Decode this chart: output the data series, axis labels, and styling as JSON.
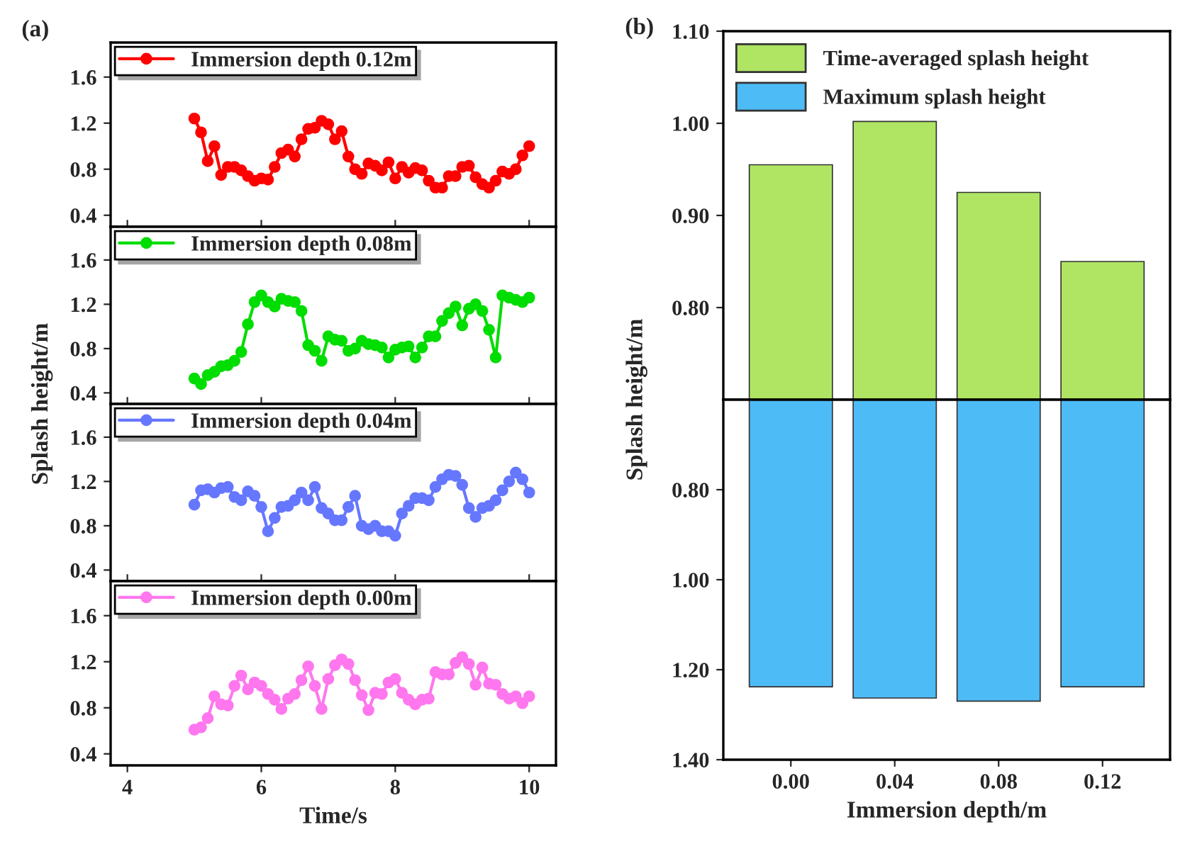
{
  "chart_data": [
    {
      "type": "line",
      "title": "(a)",
      "xlim": [
        3.75,
        10.4
      ],
      "ylim": [
        0.3,
        1.9
      ],
      "yticks": [
        0.4,
        0.8,
        1.2,
        1.6
      ],
      "xticks": [
        4,
        6,
        8,
        10
      ],
      "tick_labels": "y",
      "legend": "top left",
      "marker": "circle",
      "line_style": "solid",
      "grid": false,
      "x": [
        5.0,
        5.1,
        5.2,
        5.3,
        5.4,
        5.5,
        5.6,
        5.7,
        5.8,
        5.9,
        6.0,
        6.1,
        6.2,
        6.3,
        6.4,
        6.5,
        6.6,
        6.7,
        6.8,
        6.9,
        7.0,
        7.1,
        7.2,
        7.3,
        7.4,
        7.5,
        7.6,
        7.7,
        7.8,
        7.9,
        8.0,
        8.1,
        8.2,
        8.3,
        8.4,
        8.5,
        8.6,
        8.7,
        8.8,
        8.9,
        9.0,
        9.1,
        9.2,
        9.3,
        9.4,
        9.5,
        9.6,
        9.7,
        9.8,
        9.9,
        10.0
      ],
      "series": [
        {
          "name": "Immersion depth 0.12m",
          "color": "#ff0000",
          "values": [
            1.24,
            1.12,
            0.87,
            1.0,
            0.75,
            0.82,
            0.82,
            0.79,
            0.74,
            0.7,
            0.72,
            0.71,
            0.82,
            0.94,
            0.97,
            0.91,
            1.06,
            1.15,
            1.16,
            1.22,
            1.19,
            1.06,
            1.13,
            0.91,
            0.8,
            0.76,
            0.85,
            0.83,
            0.79,
            0.86,
            0.72,
            0.82,
            0.77,
            0.81,
            0.79,
            0.7,
            0.64,
            0.64,
            0.74,
            0.74,
            0.82,
            0.83,
            0.73,
            0.67,
            0.64,
            0.7,
            0.78,
            0.76,
            0.8,
            0.92,
            1.0
          ]
        }
      ]
    },
    {
      "type": "line",
      "ylabel": "Splash height/m",
      "xlim": [
        3.75,
        10.4
      ],
      "ylim": [
        0.3,
        1.9
      ],
      "yticks": [
        0.4,
        0.8,
        1.2,
        1.6
      ],
      "xticks": [
        4,
        6,
        8,
        10
      ],
      "tick_labels": "y",
      "legend": "top left",
      "marker": "circle",
      "line_style": "solid",
      "grid": false,
      "x": [
        5.0,
        5.1,
        5.2,
        5.3,
        5.4,
        5.5,
        5.6,
        5.7,
        5.8,
        5.9,
        6.0,
        6.1,
        6.2,
        6.3,
        6.4,
        6.5,
        6.6,
        6.7,
        6.8,
        6.9,
        7.0,
        7.1,
        7.2,
        7.3,
        7.4,
        7.5,
        7.6,
        7.7,
        7.8,
        7.9,
        8.0,
        8.1,
        8.2,
        8.3,
        8.4,
        8.5,
        8.6,
        8.7,
        8.8,
        8.9,
        9.0,
        9.1,
        9.2,
        9.3,
        9.4,
        9.5,
        9.6,
        9.7,
        9.8,
        9.9,
        10.0
      ],
      "series": [
        {
          "name": "Immersion depth 0.08m",
          "color": "#00dd00",
          "values": [
            0.53,
            0.48,
            0.56,
            0.59,
            0.64,
            0.65,
            0.69,
            0.77,
            1.02,
            1.22,
            1.28,
            1.22,
            1.18,
            1.25,
            1.23,
            1.22,
            1.14,
            0.83,
            0.78,
            0.69,
            0.91,
            0.88,
            0.87,
            0.78,
            0.8,
            0.87,
            0.84,
            0.83,
            0.81,
            0.72,
            0.79,
            0.81,
            0.82,
            0.72,
            0.81,
            0.91,
            0.91,
            1.05,
            1.12,
            1.18,
            1.01,
            1.16,
            1.2,
            1.14,
            0.97,
            0.72,
            1.28,
            1.26,
            1.24,
            1.22,
            1.26
          ]
        }
      ]
    },
    {
      "type": "line",
      "xlim": [
        3.75,
        10.4
      ],
      "ylim": [
        0.3,
        1.9
      ],
      "yticks": [
        0.4,
        0.8,
        1.2,
        1.6
      ],
      "xticks": [
        4,
        6,
        8,
        10
      ],
      "tick_labels": "y",
      "legend": "top left",
      "marker": "circle",
      "line_style": "solid",
      "grid": false,
      "x": [
        5.0,
        5.1,
        5.2,
        5.3,
        5.4,
        5.5,
        5.6,
        5.7,
        5.8,
        5.9,
        6.0,
        6.1,
        6.2,
        6.3,
        6.4,
        6.5,
        6.6,
        6.7,
        6.8,
        6.9,
        7.0,
        7.1,
        7.2,
        7.3,
        7.4,
        7.5,
        7.6,
        7.7,
        7.8,
        7.9,
        8.0,
        8.1,
        8.2,
        8.3,
        8.4,
        8.5,
        8.6,
        8.7,
        8.8,
        8.9,
        9.0,
        9.1,
        9.2,
        9.3,
        9.4,
        9.5,
        9.6,
        9.7,
        9.8,
        9.9,
        10.0
      ],
      "series": [
        {
          "name": "Immersion depth 0.04m",
          "color": "#6677ff",
          "values": [
            0.99,
            1.12,
            1.13,
            1.1,
            1.14,
            1.15,
            1.06,
            1.03,
            1.11,
            1.07,
            0.97,
            0.75,
            0.87,
            0.97,
            0.98,
            1.03,
            1.1,
            1.03,
            1.15,
            0.96,
            0.91,
            0.85,
            0.85,
            0.97,
            1.07,
            0.8,
            0.77,
            0.8,
            0.75,
            0.75,
            0.71,
            0.91,
            0.98,
            1.05,
            1.05,
            1.03,
            1.15,
            1.22,
            1.26,
            1.25,
            1.17,
            0.96,
            0.88,
            0.96,
            0.98,
            1.03,
            1.12,
            1.2,
            1.28,
            1.22,
            1.1
          ]
        }
      ]
    },
    {
      "type": "line",
      "xlabel": "Time/s",
      "xlim": [
        3.75,
        10.4
      ],
      "ylim": [
        0.3,
        1.9
      ],
      "yticks": [
        0.4,
        0.8,
        1.2,
        1.6
      ],
      "xticks": [
        4,
        6,
        8,
        10
      ],
      "legend": "top left",
      "marker": "circle",
      "line_style": "solid",
      "grid": false,
      "x": [
        5.0,
        5.1,
        5.2,
        5.3,
        5.4,
        5.5,
        5.6,
        5.7,
        5.8,
        5.9,
        6.0,
        6.1,
        6.2,
        6.3,
        6.4,
        6.5,
        6.6,
        6.7,
        6.8,
        6.9,
        7.0,
        7.1,
        7.2,
        7.3,
        7.4,
        7.5,
        7.6,
        7.7,
        7.8,
        7.9,
        8.0,
        8.1,
        8.2,
        8.3,
        8.4,
        8.5,
        8.6,
        8.7,
        8.8,
        8.9,
        9.0,
        9.1,
        9.2,
        9.3,
        9.4,
        9.5,
        9.6,
        9.7,
        9.8,
        9.9,
        10.0
      ],
      "series": [
        {
          "name": "Immersion depth 0.00m",
          "color": "#ff77ee",
          "values": [
            0.61,
            0.63,
            0.71,
            0.9,
            0.83,
            0.82,
            0.99,
            1.08,
            0.96,
            1.02,
            0.99,
            0.92,
            0.87,
            0.79,
            0.88,
            0.92,
            1.04,
            1.16,
            0.99,
            0.79,
            1.05,
            1.17,
            1.22,
            1.18,
            1.04,
            0.91,
            0.78,
            0.93,
            0.92,
            1.02,
            1.05,
            0.93,
            0.87,
            0.83,
            0.87,
            0.88,
            1.11,
            1.09,
            1.09,
            1.19,
            1.24,
            1.18,
            1.0,
            1.15,
            1.01,
            1.0,
            0.92,
            0.88,
            0.9,
            0.84,
            0.9
          ]
        }
      ]
    },
    {
      "type": "bar",
      "title": "(b)",
      "ylabel": "Splash height/m",
      "categories": [
        "0.00",
        "0.04",
        "0.08",
        "0.12"
      ],
      "ylim": [
        0.7,
        1.1
      ],
      "yticks": [
        {
          "value": 0.8,
          "label": "0.80"
        },
        {
          "value": 0.9,
          "label": "0.90"
        },
        {
          "value": 1.0,
          "label": "1.00"
        },
        {
          "value": 1.1,
          "label": "1.10"
        }
      ],
      "tick_labels": "y",
      "legend": "top left",
      "grid": false,
      "series": [
        {
          "name": "Time-averaged splash height",
          "color": "#b0e564",
          "values": [
            0.955,
            1.002,
            0.925,
            0.85
          ]
        }
      ]
    },
    {
      "type": "bar",
      "xlabel": "Immersion depth/m",
      "categories": [
        "0.00",
        "0.04",
        "0.08",
        "0.12"
      ],
      "ylim": [
        1.4,
        0.6
      ],
      "yticks": [
        {
          "value": 0.8,
          "label": "0.80"
        },
        {
          "value": 1.0,
          "label": "1.00"
        },
        {
          "value": 1.2,
          "label": "1.20"
        },
        {
          "value": 1.4,
          "label": "1.40"
        }
      ],
      "legend": "top left",
      "grid": false,
      "series": [
        {
          "name": "Maximum splash height",
          "color": "#4dbbf5",
          "values": [
            1.238,
            1.263,
            1.27,
            1.238
          ]
        }
      ]
    }
  ]
}
